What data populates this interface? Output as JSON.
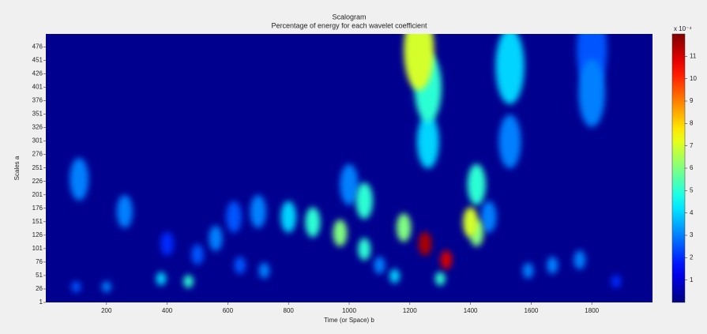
{
  "chart_data": {
    "type": "heatmap",
    "title": "Scalogram",
    "subtitle": "Percentage of energy for each wavelet coefficient",
    "x_label": "Time (or Space) b",
    "y_label": "Scales a",
    "xlim": [
      0,
      2000
    ],
    "xticks": [
      200,
      400,
      600,
      800,
      1000,
      1200,
      1400,
      1600,
      1800
    ],
    "ylim": [
      1,
      500
    ],
    "yticks": [
      1,
      26,
      51,
      76,
      101,
      126,
      151,
      176,
      201,
      226,
      251,
      276,
      301,
      326,
      351,
      376,
      401,
      426,
      451,
      476
    ],
    "clim": [
      0,
      12
    ],
    "cticks": [
      1,
      2,
      3,
      4,
      5,
      6,
      7,
      8,
      9,
      10,
      11
    ],
    "colorbar_label": "x 10⁻⁴",
    "colormap": "jet",
    "points": {
      "x": [
        1250,
        1320,
        1400,
        1180,
        970,
        1050,
        1050,
        880,
        800,
        700,
        620,
        560,
        260,
        110,
        1230,
        1260,
        1260,
        1530,
        1530,
        1800,
        1800,
        1420,
        380,
        470,
        1300,
        1150,
        1590,
        1760,
        1670,
        1100,
        720,
        640,
        200,
        100,
        400,
        500,
        1420,
        1000,
        1460,
        1880
      ],
      "y": [
        110,
        80,
        150,
        140,
        130,
        190,
        100,
        150,
        160,
        170,
        160,
        120,
        170,
        230,
        470,
        300,
        400,
        440,
        300,
        390,
        470,
        220,
        45,
        40,
        45,
        50,
        60,
        80,
        70,
        70,
        60,
        70,
        30,
        30,
        110,
        90,
        130,
        220,
        160,
        40
      ],
      "values": [
        11.5,
        11,
        7,
        6,
        6,
        5,
        5,
        5,
        4,
        3,
        2.5,
        3,
        3,
        3,
        7,
        4,
        5,
        4,
        3,
        3,
        2.5,
        5,
        4,
        5,
        5,
        4,
        3,
        3,
        3,
        3,
        3,
        2.5,
        3,
        2.5,
        2,
        2.5,
        6,
        3,
        3,
        2
      ]
    }
  }
}
